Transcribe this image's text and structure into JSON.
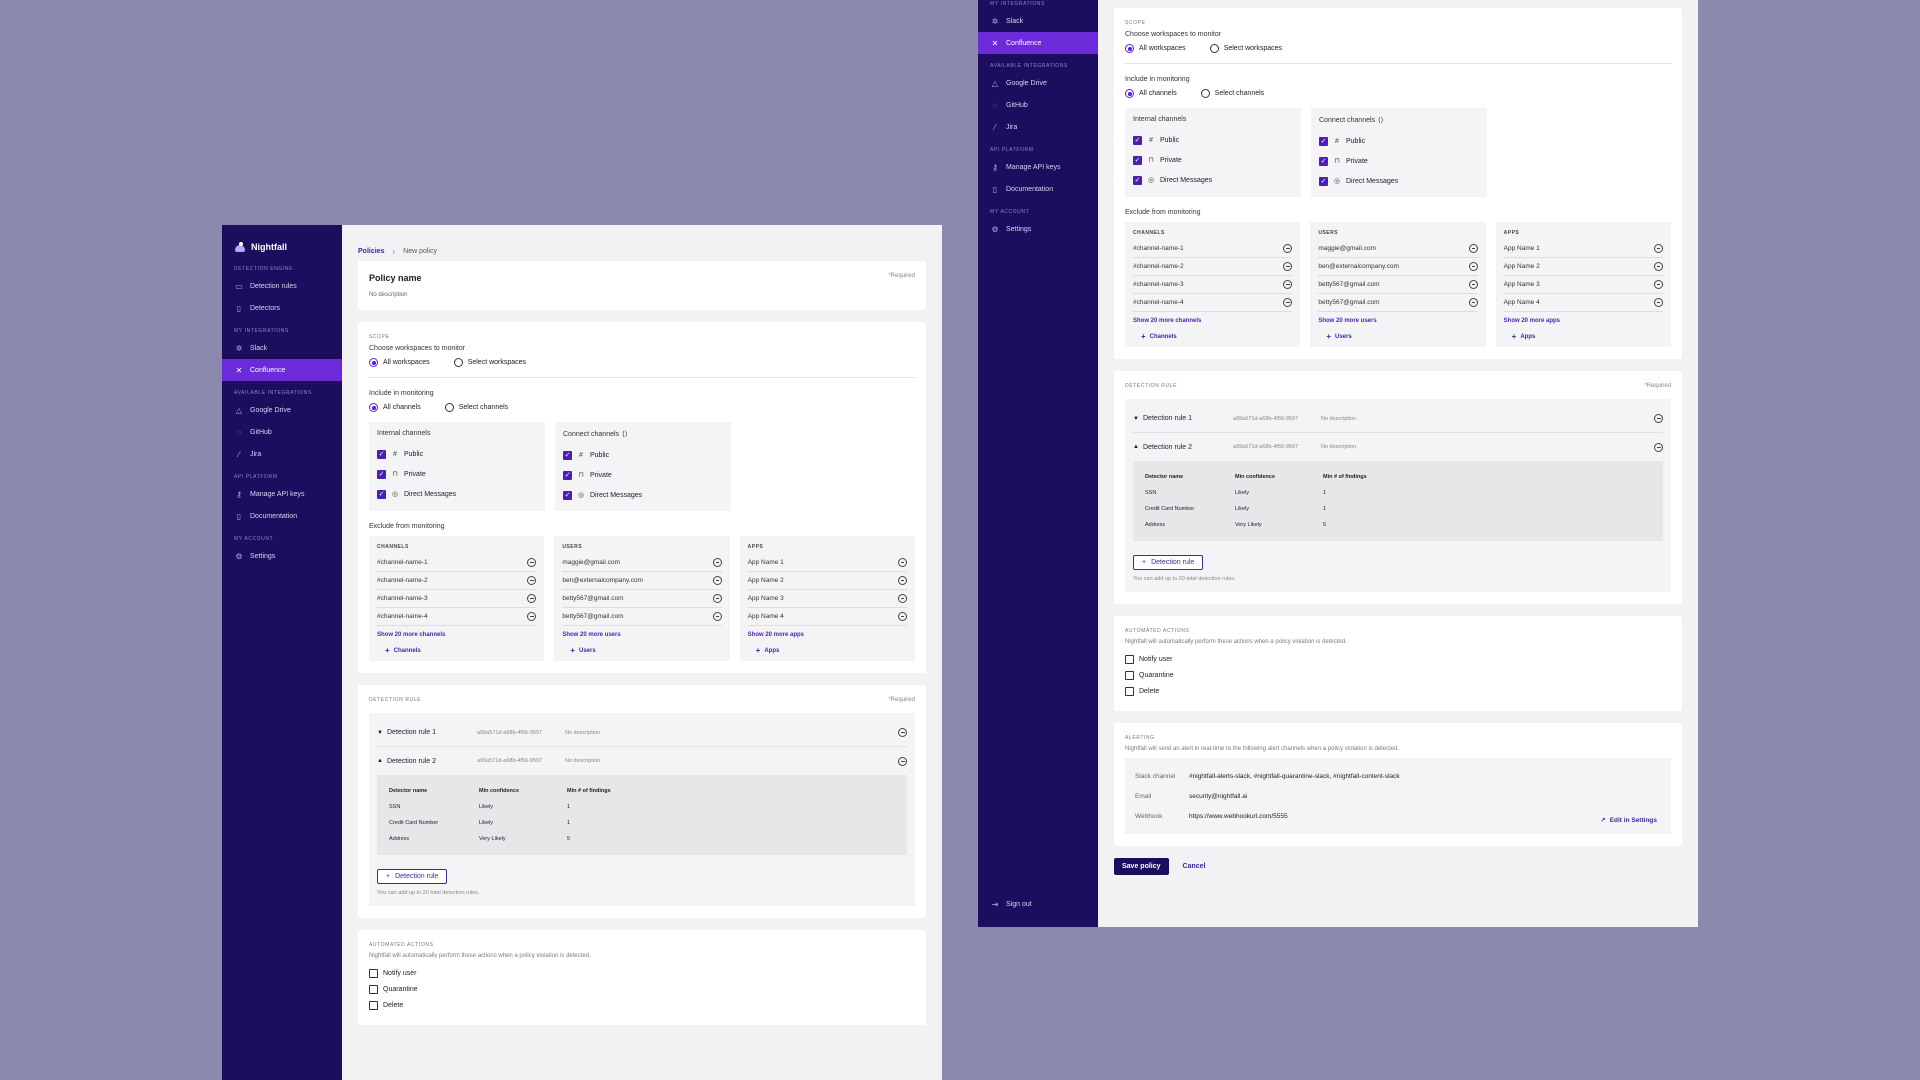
{
  "brand": {
    "name": "Nightfall"
  },
  "sidebar": {
    "sections": {
      "detection_engine": "DETECTION ENGINE",
      "my_integrations": "MY INTEGRATIONS",
      "available_integrations": "AVAILABLE INTEGRATIONS",
      "api_platform": "API PLATFORM",
      "my_account": "MY ACCOUNT"
    },
    "items": {
      "detection_rules": "Detection rules",
      "detectors": "Detectors",
      "slack": "Slack",
      "confluence": "Confluence",
      "google_drive": "Google Drive",
      "github": "GitHub",
      "jira": "Jira",
      "manage_api_keys": "Manage API keys",
      "documentation": "Documentation",
      "settings": "Settings"
    },
    "sign_out": "Sign out",
    "active": "Confluence"
  },
  "breadcrumb": {
    "parent": "Policies",
    "current": "New policy"
  },
  "policy": {
    "name_label": "Policy name",
    "required": "*Required",
    "description": "No description"
  },
  "scope": {
    "section": "SCOPE",
    "workspaces_label": "Choose workspaces to monitor",
    "all_workspaces": "All workspaces",
    "select_workspaces": "Select workspaces",
    "include_label": "Include in monitoring",
    "all_channels": "All channels",
    "select_channels": "Select channels",
    "internal_title": "Internal channels",
    "connect_title": "Connect channels",
    "public": "Public",
    "private": "Private",
    "direct_messages": "Direct Messages",
    "exclude_label": "Exclude from monitoring",
    "channels_head": "CHANNELS",
    "users_head": "USERS",
    "apps_head": "APPS",
    "channels": [
      "#channel-name-1",
      "#channel-name-2",
      "#channel-name-3",
      "#channel-name-4"
    ],
    "users": [
      "maggie@gmail.com",
      "ben@externalcompany.com",
      "betty567@gmail.com",
      "betty567@gmail.com"
    ],
    "apps": [
      "App Name 1",
      "App Name 2",
      "App Name 3",
      "App Name 4"
    ],
    "show_more_channels": "Show 20 more channels",
    "show_more_users": "Show 20 more users",
    "show_more_apps": "Show 20 more apps",
    "add_channels": "Channels",
    "add_users": "Users",
    "add_apps": "Apps"
  },
  "detection": {
    "section": "DETECTION RULE",
    "required": "*Required",
    "rules": [
      {
        "name": "Detection rule 1",
        "id": "a99a571d-a68b-4f56-9597",
        "desc": "No description"
      },
      {
        "name": "Detection rule 2",
        "id": "a99a571d-a68b-4f56-9597",
        "desc": "No description"
      }
    ],
    "table_head": {
      "c1": "Detector name",
      "c2": "Min confidence",
      "c3": "Min # of findings"
    },
    "table_rows": [
      {
        "c1": "SSN",
        "c2": "Likely",
        "c3": "1"
      },
      {
        "c1": "Credit Card Number",
        "c2": "Likely",
        "c3": "1"
      },
      {
        "c1": "Address",
        "c2": "Very Likely",
        "c3": "5"
      }
    ],
    "add_button": "Detection rule",
    "note": "You can add up to 20 total detection rules."
  },
  "actions": {
    "section": "AUTOMATED ACTIONS",
    "desc": "Nightfall will automatically perform these actions when a policy violation is detected.",
    "notify": "Notify user",
    "quarantine": "Quarantine",
    "delete": "Delete"
  },
  "alerting": {
    "section": "ALERTING",
    "desc": "Nightfall will send an alert in real-time to the following alert channels when a policy violation is detected.",
    "slack_key": "Slack channel",
    "slack_val": "#nightfall-alerts-slack, #nightfall-quarantine-slack, #nightfall-content-slack",
    "email_key": "Email",
    "email_val": "security@nightfall.ai",
    "webhook_key": "Webhook",
    "webhook_val": "https://www.webhookurl.com/5555",
    "edit": "Edit in Settings"
  },
  "footer": {
    "save": "Save policy",
    "cancel": "Cancel"
  }
}
